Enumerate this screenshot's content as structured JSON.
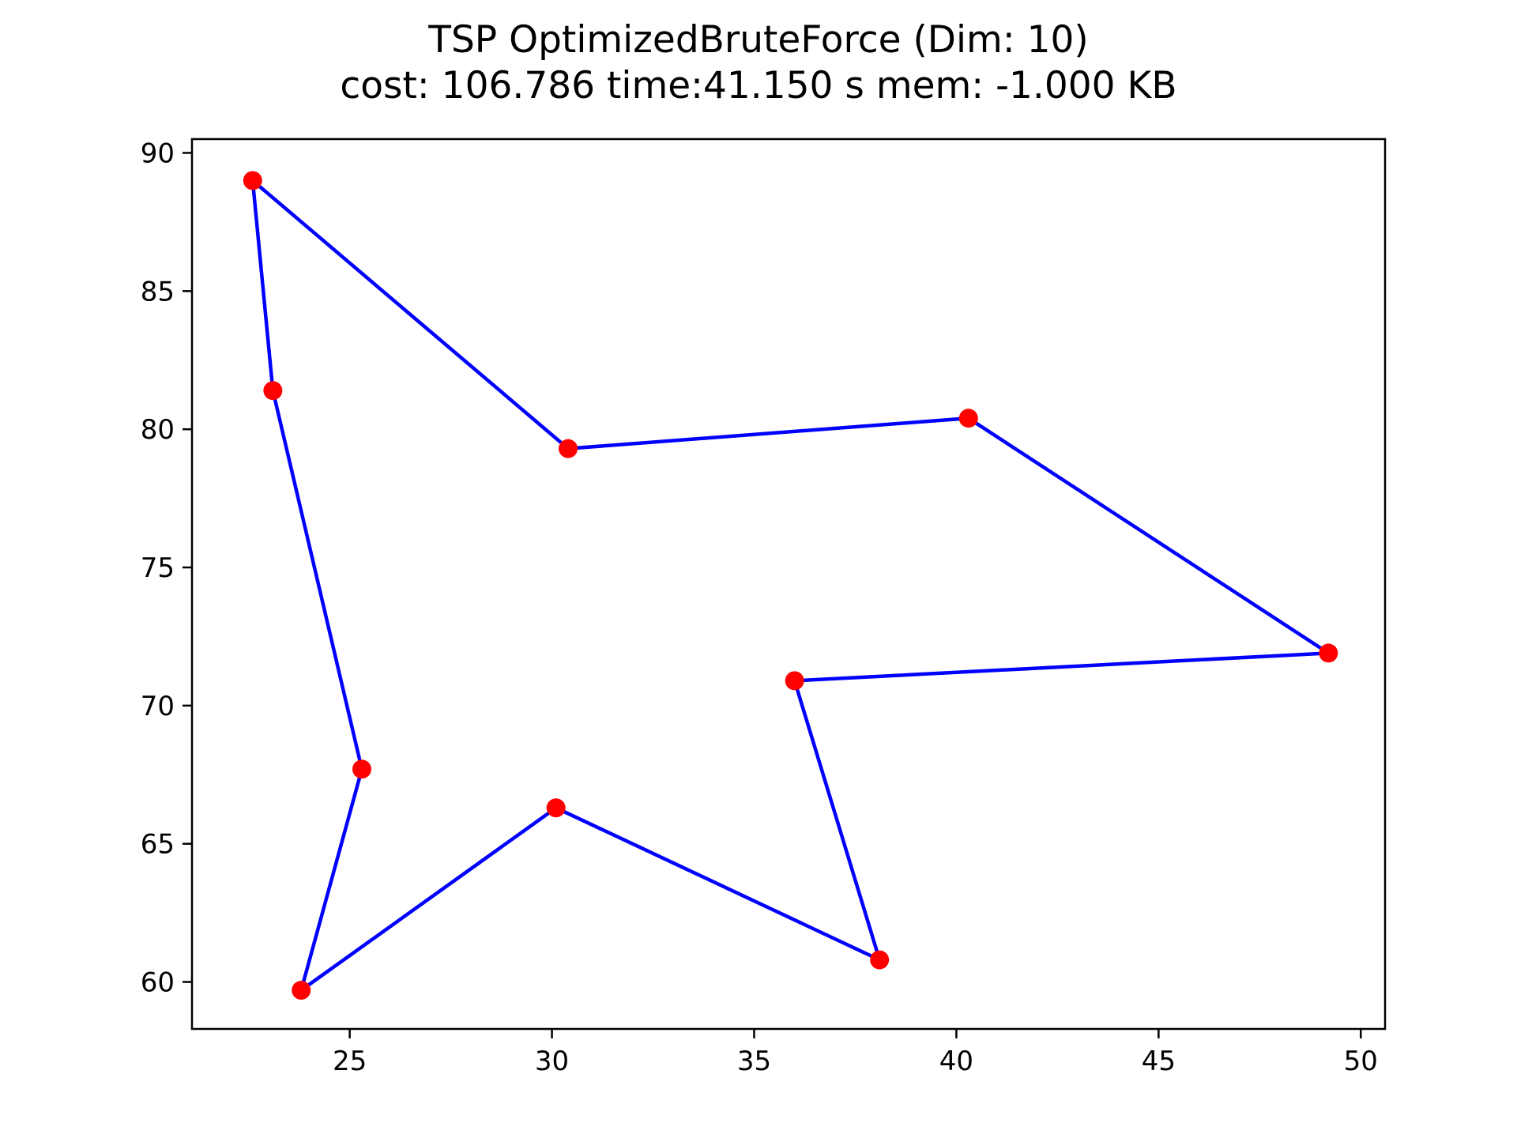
{
  "chart_data": {
    "type": "line",
    "title": "TSP OptimizedBruteForce (Dim: 10)",
    "subtitle": "cost: 106.786   time:41.150 s   mem: -1.000 KB",
    "xlim": [
      21.1,
      50.6
    ],
    "ylim": [
      58.3,
      90.5
    ],
    "x_ticks": [
      25,
      30,
      35,
      40,
      45,
      50
    ],
    "y_ticks": [
      60,
      65,
      70,
      75,
      80,
      85,
      90
    ],
    "points": [
      {
        "x": 22.6,
        "y": 89.0
      },
      {
        "x": 30.4,
        "y": 79.3
      },
      {
        "x": 40.3,
        "y": 80.4
      },
      {
        "x": 49.2,
        "y": 71.9
      },
      {
        "x": 36.0,
        "y": 70.9
      },
      {
        "x": 38.1,
        "y": 60.8
      },
      {
        "x": 30.1,
        "y": 66.3
      },
      {
        "x": 23.8,
        "y": 59.7
      },
      {
        "x": 25.3,
        "y": 67.7
      },
      {
        "x": 23.1,
        "y": 81.4
      }
    ],
    "closed_tour": true,
    "line_color": "#0000ff",
    "marker_color": "#ff0000",
    "grid": false
  }
}
